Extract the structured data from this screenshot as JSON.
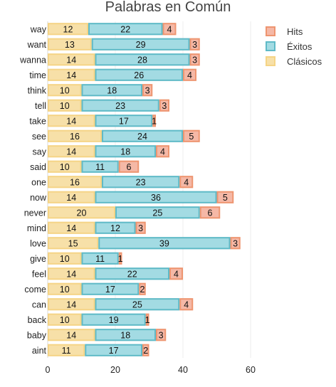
{
  "chart_data": {
    "type": "bar",
    "orientation": "horizontal",
    "barmode": "stack",
    "title": "Palabras en Común",
    "categories": [
      "way",
      "want",
      "wanna",
      "time",
      "think",
      "tell",
      "take",
      "see",
      "say",
      "said",
      "one",
      "now",
      "never",
      "mind",
      "love",
      "give",
      "feel",
      "come",
      "can",
      "back",
      "baby",
      "aint"
    ],
    "series": [
      {
        "name": "Clásicos",
        "fill": "#f7e0a8",
        "stroke": "#f5d486",
        "values": [
          12,
          13,
          14,
          14,
          10,
          10,
          14,
          16,
          14,
          10,
          16,
          14,
          20,
          14,
          15,
          10,
          14,
          10,
          14,
          10,
          14,
          11
        ]
      },
      {
        "name": "Éxitos",
        "fill": "#a3dbe3",
        "stroke": "#5fbac7",
        "values": [
          22,
          29,
          28,
          26,
          18,
          23,
          17,
          24,
          18,
          11,
          23,
          36,
          25,
          12,
          39,
          11,
          22,
          17,
          25,
          19,
          18,
          17
        ]
      },
      {
        "name": "Hits",
        "fill": "#f5b8a6",
        "stroke": "#ee9570",
        "values": [
          4,
          3,
          3,
          4,
          3,
          3,
          1,
          5,
          4,
          6,
          4,
          5,
          6,
          3,
          3,
          1,
          4,
          2,
          4,
          1,
          3,
          2
        ]
      }
    ],
    "legend_order": [
      "Hits",
      "Éxitos",
      "Clásicos"
    ],
    "legend_position": "top-right",
    "xlim": [
      0,
      60
    ],
    "xticks": [
      0,
      20,
      40,
      60
    ],
    "grid": true
  }
}
